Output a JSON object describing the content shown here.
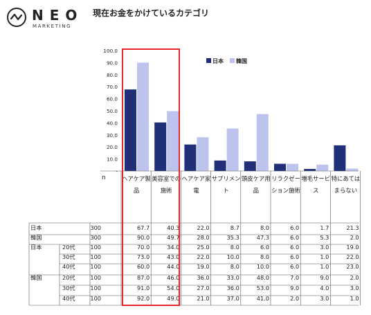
{
  "logo": {
    "name": "NEO",
    "sub": "MARKETING"
  },
  "page_title": "現在お金をかけているカテゴリ",
  "chart_data": {
    "type": "bar",
    "title": "現在お金をかけているカテゴリ",
    "categories": [
      "ヘアケア製品",
      "美容室での施術",
      "ヘアケア家電",
      "サプリメント",
      "頭皮ケア用品",
      "リラクゼーション施術",
      "増毛サービス",
      "特にあてはまらない"
    ],
    "series": [
      {
        "name": "日本",
        "color": "#1f2f78",
        "values": [
          67.7,
          40.3,
          22.0,
          8.7,
          8.0,
          6.0,
          1.7,
          21.3
        ]
      },
      {
        "name": "韓国",
        "color": "#bcc4ee",
        "values": [
          90.0,
          49.7,
          28.0,
          35.3,
          47.3,
          6.0,
          5.3,
          2.0
        ]
      }
    ],
    "ylim": [
      0,
      100
    ],
    "yticks": [
      "100.0",
      "90.0",
      "80.0",
      "70.0",
      "60.0",
      "50.0",
      "40.0",
      "30.0",
      "20.0",
      "10.0",
      "-"
    ],
    "legend_position": "top-right",
    "grid": false
  },
  "n_header": "n",
  "table_rows": [
    {
      "group": "日本",
      "sub": "",
      "n": "300",
      "values": [
        "67.7",
        "40.3",
        "22.0",
        "8.7",
        "8.0",
        "6.0",
        "1.7",
        "21.3"
      ]
    },
    {
      "group": "韓国",
      "sub": "",
      "n": "300",
      "values": [
        "90.0",
        "49.7",
        "28.0",
        "35.3",
        "47.3",
        "6.0",
        "5.3",
        "2.0"
      ]
    },
    {
      "group": "日本",
      "sub": "20代",
      "n": "100",
      "values": [
        "70.0",
        "34.0",
        "25.0",
        "8.0",
        "6.0",
        "6.0",
        "3.0",
        "19.0"
      ]
    },
    {
      "group": "",
      "sub": "30代",
      "n": "100",
      "values": [
        "73.0",
        "43.0",
        "22.0",
        "10.0",
        "8.0",
        "6.0",
        "1.0",
        "22.0"
      ]
    },
    {
      "group": "",
      "sub": "40代",
      "n": "100",
      "values": [
        "60.0",
        "44.0",
        "19.0",
        "8.0",
        "10.0",
        "6.0",
        "1.0",
        "23.0"
      ]
    },
    {
      "group": "韓国",
      "sub": "20代",
      "n": "100",
      "values": [
        "87.0",
        "46.0",
        "36.0",
        "33.0",
        "48.0",
        "7.0",
        "9.0",
        "2.0"
      ]
    },
    {
      "group": "",
      "sub": "30代",
      "n": "100",
      "values": [
        "91.0",
        "54.0",
        "27.0",
        "36.0",
        "53.0",
        "9.0",
        "4.0",
        "3.0"
      ]
    },
    {
      "group": "",
      "sub": "40代",
      "n": "100",
      "values": [
        "92.0",
        "49.0",
        "21.0",
        "37.0",
        "41.0",
        "2.0",
        "3.0",
        "1.0"
      ]
    }
  ],
  "highlight_color": "#e6262a"
}
